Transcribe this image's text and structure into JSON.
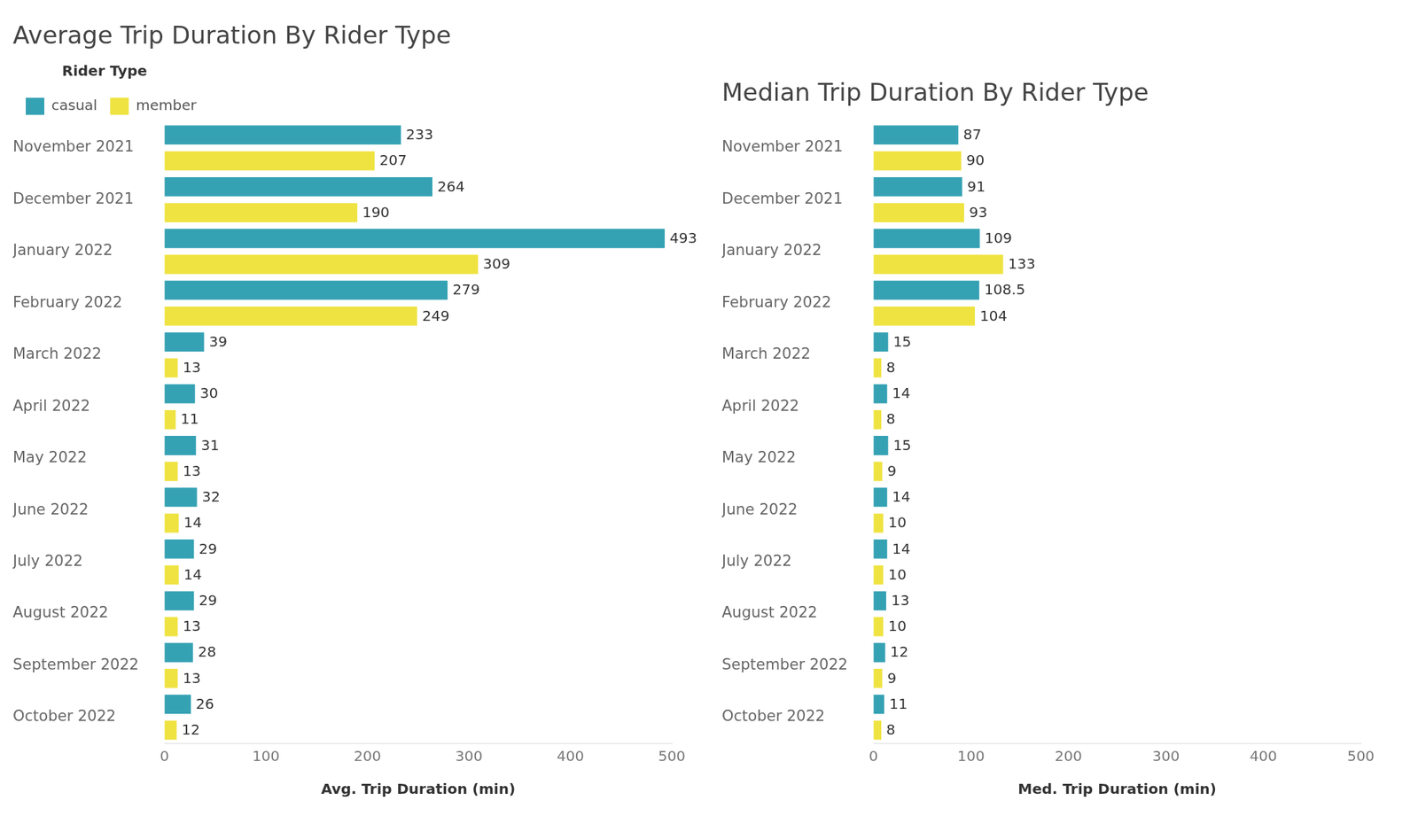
{
  "chart_data": [
    {
      "type": "bar",
      "orientation": "horizontal",
      "title": "Average Trip Duration By Rider Type",
      "x_label": "Avg. Trip Duration (min)",
      "legend_title": "Rider Type",
      "legend": "top-left",
      "categories": [
        "November 2021",
        "December 2021",
        "January 2022",
        "February 2022",
        "March 2022",
        "April 2022",
        "May 2022",
        "June 2022",
        "July 2022",
        "August 2022",
        "September 2022",
        "October 2022"
      ],
      "series": [
        {
          "name": "casual",
          "color": "#35a2b4",
          "values": [
            233,
            264,
            493,
            279,
            39,
            30,
            31,
            32,
            29,
            29,
            28,
            26
          ]
        },
        {
          "name": "member",
          "color": "#efe342",
          "values": [
            207,
            190,
            309,
            249,
            13,
            11,
            13,
            14,
            14,
            13,
            13,
            12
          ]
        }
      ],
      "xlim": [
        0,
        500
      ],
      "xticks": [
        0,
        100,
        200,
        300,
        400,
        500
      ],
      "grid": false,
      "data_labels": true
    },
    {
      "type": "bar",
      "orientation": "horizontal",
      "title": "Median Trip Duration By Rider Type",
      "x_label": "Med. Trip Duration (min)",
      "categories": [
        "November 2021",
        "December 2021",
        "January 2022",
        "February 2022",
        "March 2022",
        "April 2022",
        "May 2022",
        "June 2022",
        "July 2022",
        "August 2022",
        "September 2022",
        "October 2022"
      ],
      "series": [
        {
          "name": "casual",
          "color": "#35a2b4",
          "values": [
            87,
            91,
            109,
            108.5,
            15,
            14,
            15,
            14,
            14,
            13,
            12,
            11
          ]
        },
        {
          "name": "member",
          "color": "#efe342",
          "values": [
            90,
            93,
            133,
            104,
            8,
            8,
            9,
            10,
            10,
            10,
            9,
            8
          ]
        }
      ],
      "xlim": [
        0,
        500
      ],
      "xticks": [
        0,
        100,
        200,
        300,
        400,
        500
      ],
      "grid": false,
      "data_labels": true
    }
  ]
}
